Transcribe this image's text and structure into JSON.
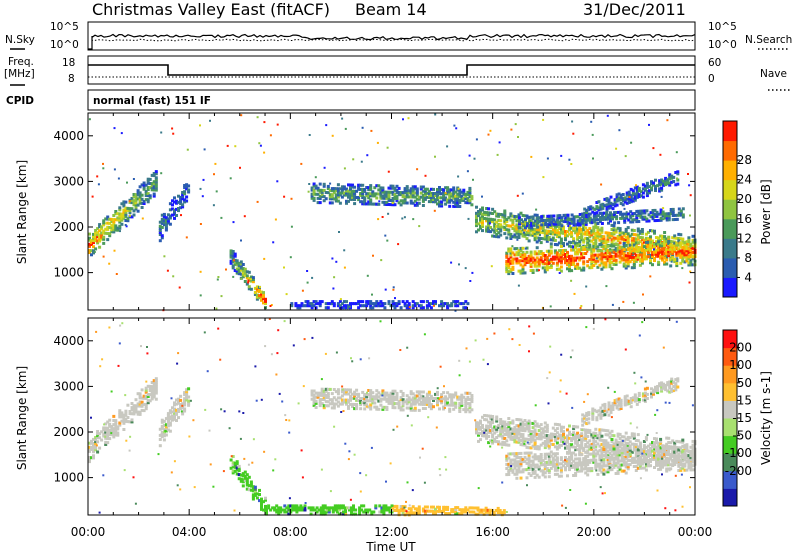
{
  "header": {
    "station": "Christmas Valley East (fitACF)",
    "beam": "Beam 14",
    "date": "31/Dec/2011"
  },
  "top_panels": {
    "nsky_label": "N.Sky",
    "nsearch_label": "N.Search",
    "nsky_ticks": [
      "10^5",
      "10^0"
    ],
    "nsearch_ticks": [
      "10^5",
      "10^0"
    ],
    "freq_label": "Freq.",
    "freq_unit": "[MHz]",
    "freq_ticks": [
      "18",
      "8"
    ],
    "nave_label": "Nave",
    "nave_ticks": [
      "60",
      "0"
    ],
    "cpid_label": "CPID",
    "cpid_text": "normal (fast) 151 IF"
  },
  "x_axis": {
    "label": "Time UT",
    "ticks": [
      "00:00",
      "04:00",
      "08:00",
      "12:00",
      "16:00",
      "20:00",
      "00:00"
    ]
  },
  "chart_data": [
    {
      "type": "heatmap",
      "name": "power",
      "ylabel": "Slant Range [km]",
      "y_ticks": [
        1000,
        2000,
        3000,
        4000
      ],
      "ylim": [
        180,
        4500
      ],
      "xlim_hours": [
        0,
        24
      ],
      "colorbar": {
        "label": "Power [dB]",
        "ticks": [
          "4",
          "8",
          "12",
          "16",
          "20",
          "24",
          "28"
        ],
        "colors": [
          "#1a1aff",
          "#2a5cb0",
          "#3a7a8a",
          "#4a9a5a",
          "#8fc440",
          "#d6d61a",
          "#ffb000",
          "#ff6a00",
          "#ff1a00"
        ]
      },
      "features": [
        {
          "kind": "band",
          "t": [
            0,
            2.7
          ],
          "r0": [
            1600,
            3000
          ],
          "w": 500,
          "level": [
            0.85,
            0.35
          ]
        },
        {
          "kind": "band",
          "t": [
            2.8,
            4.0
          ],
          "r0": [
            1950,
            2900
          ],
          "w": 500,
          "level": [
            0.3,
            0.2
          ]
        },
        {
          "kind": "band",
          "t": [
            5.6,
            7.0
          ],
          "r0": [
            1350,
            350
          ],
          "w": 380,
          "level": [
            0.35,
            0.9
          ]
        },
        {
          "kind": "band",
          "t": [
            8.0,
            15.0
          ],
          "r0": [
            300,
            300
          ],
          "w": 140,
          "level": [
            0.15,
            0.15
          ]
        },
        {
          "kind": "band",
          "t": [
            8.8,
            15.2
          ],
          "r0": [
            2750,
            2650
          ],
          "w": 420,
          "level": [
            0.4,
            0.4
          ]
        },
        {
          "kind": "band",
          "t": [
            15.3,
            24
          ],
          "r0": [
            2150,
            1500
          ],
          "w": 600,
          "level": [
            0.55,
            0.85
          ]
        },
        {
          "kind": "band",
          "t": [
            16.5,
            24
          ],
          "r0": [
            1250,
            1450
          ],
          "w": 550,
          "level": [
            0.95,
            0.9
          ]
        },
        {
          "kind": "band",
          "t": [
            17.0,
            23.5
          ],
          "r0": [
            2100,
            2300
          ],
          "w": 250,
          "level": [
            0.3,
            0.3
          ]
        },
        {
          "kind": "band",
          "t": [
            19.5,
            23.3
          ],
          "r0": [
            2300,
            3100
          ],
          "w": 300,
          "level": [
            0.25,
            0.3
          ]
        }
      ]
    },
    {
      "type": "heatmap",
      "name": "velocity",
      "ylabel": "Slant Range [km]",
      "y_ticks": [
        1000,
        2000,
        3000,
        4000
      ],
      "ylim": [
        180,
        4500
      ],
      "xlim_hours": [
        0,
        24
      ],
      "colorbar": {
        "label": "Velocity [m s-1]",
        "ticks": [
          "200",
          "100",
          "50",
          "15",
          "-15",
          "-50",
          "-100",
          "-200"
        ],
        "colors": [
          "#1a1aaa",
          "#3a5acc",
          "#4a8a5a",
          "#44cc22",
          "#a8e070",
          "#c8c8c0",
          "#ffc030",
          "#ff9a20",
          "#ff5a10",
          "#ff1010"
        ]
      },
      "features": [
        {
          "kind": "band",
          "t": [
            0,
            2.7
          ],
          "r0": [
            1600,
            3000
          ],
          "w": 500,
          "color": 5
        },
        {
          "kind": "band",
          "t": [
            2.8,
            4.0
          ],
          "r0": [
            1950,
            2900
          ],
          "w": 500,
          "color": 5
        },
        {
          "kind": "band",
          "t": [
            5.6,
            7.0
          ],
          "r0": [
            1350,
            350
          ],
          "w": 380,
          "color": 3
        },
        {
          "kind": "band",
          "t": [
            7.0,
            12.0
          ],
          "r0": [
            300,
            300
          ],
          "w": 200,
          "color": 3
        },
        {
          "kind": "band",
          "t": [
            12.0,
            16.5
          ],
          "r0": [
            300,
            250
          ],
          "w": 220,
          "color": 6
        },
        {
          "kind": "band",
          "t": [
            8.8,
            15.2
          ],
          "r0": [
            2750,
            2650
          ],
          "w": 420,
          "color": 5
        },
        {
          "kind": "band",
          "t": [
            15.3,
            24
          ],
          "r0": [
            2100,
            1500
          ],
          "w": 600,
          "color": 5
        },
        {
          "kind": "band",
          "t": [
            16.5,
            24
          ],
          "r0": [
            1250,
            1450
          ],
          "w": 550,
          "color": 5
        },
        {
          "kind": "band",
          "t": [
            19.5,
            23.3
          ],
          "r0": [
            2300,
            3100
          ],
          "w": 300,
          "color": 5
        }
      ]
    }
  ]
}
